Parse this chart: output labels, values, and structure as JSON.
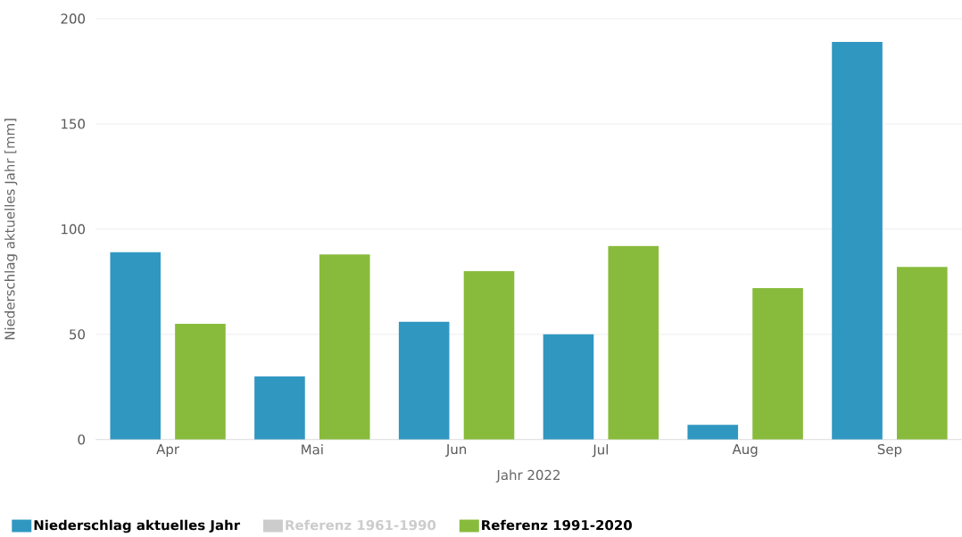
{
  "chart_data": {
    "type": "bar",
    "xlabel": "Jahr 2022",
    "ylabel": "Niederschlag aktuelles Jahr [mm]",
    "categories": [
      "Apr",
      "Mai",
      "Jun",
      "Jul",
      "Aug",
      "Sep"
    ],
    "series": [
      {
        "name": "Niederschlag aktuelles Jahr",
        "color": "#3097c1",
        "values": [
          89,
          30,
          56,
          50,
          7,
          189
        ]
      },
      {
        "name": "Referenz 1961-1990",
        "color": "#cccccc",
        "values": [
          null,
          null,
          null,
          null,
          null,
          null
        ]
      },
      {
        "name": "Referenz 1991-2020",
        "color": "#88bb3c",
        "values": [
          55,
          88,
          80,
          92,
          72,
          82
        ]
      }
    ],
    "ylim": [
      0,
      200
    ],
    "yticks": [
      0,
      50,
      100,
      150,
      200
    ],
    "grid": "y",
    "legend": "bottom"
  }
}
